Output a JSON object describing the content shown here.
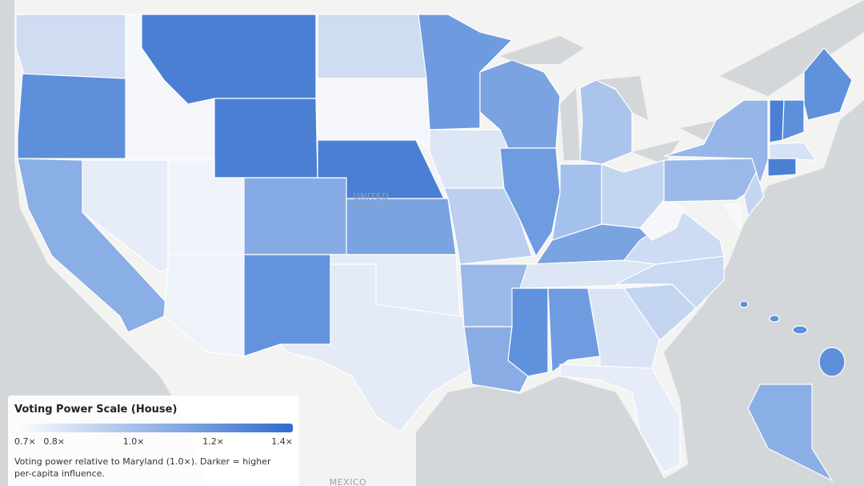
{
  "map": {
    "labels": {
      "united_states": "UNITED STATES",
      "mexico": "MEXICO"
    }
  },
  "legend": {
    "title": "Voting Power Scale (House)",
    "range": [
      0.7,
      1.4
    ],
    "colors": [
      "#ffffff",
      "#2f6ccf"
    ],
    "ticks": [
      {
        "value": 0.7,
        "label": "0.7×"
      },
      {
        "value": 0.8,
        "label": "0.8×"
      },
      {
        "value": 1.0,
        "label": "1.0×"
      },
      {
        "value": 1.2,
        "label": "1.2×"
      },
      {
        "value": 1.4,
        "label": "1.4×"
      }
    ],
    "note": "Voting power relative to Maryland (1.0×). Darker = higher per-capita influence."
  }
}
